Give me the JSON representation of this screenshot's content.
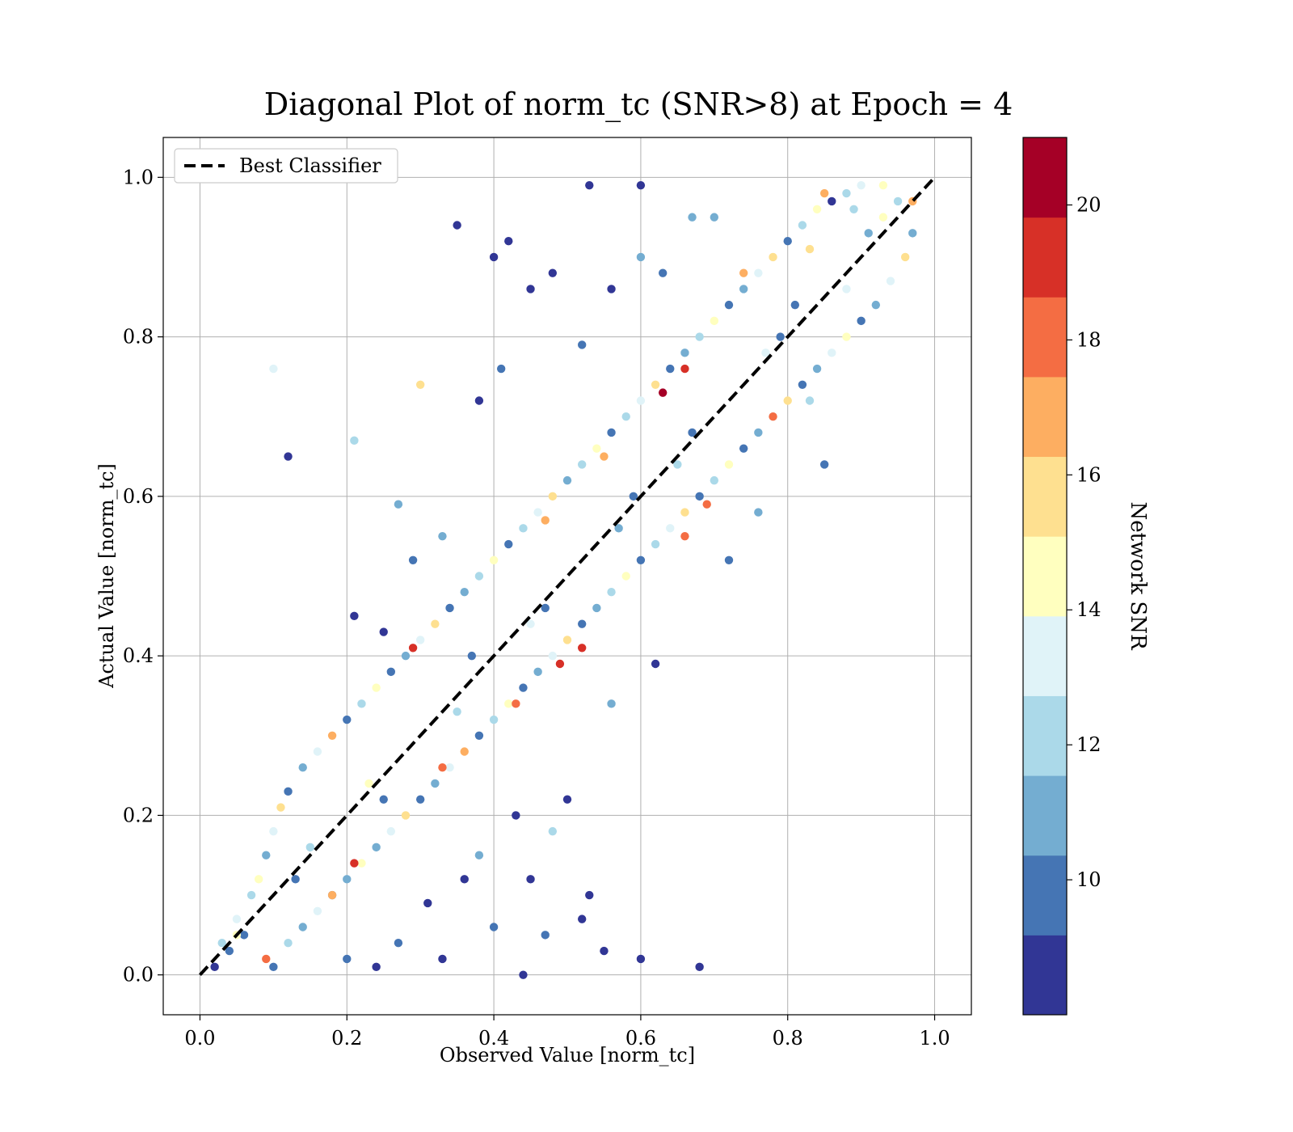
{
  "chart_data": {
    "type": "scatter",
    "title": "Diagonal Plot of norm_tc (SNR>8) at Epoch = 4",
    "xlabel": "Observed Value [norm_tc]",
    "ylabel": "Actual Value [norm_tc]",
    "xlim": [
      -0.05,
      1.05
    ],
    "ylim": [
      -0.05,
      1.05
    ],
    "xticks": [
      0.0,
      0.2,
      0.4,
      0.6,
      0.8,
      1.0
    ],
    "yticks": [
      0.0,
      0.2,
      0.4,
      0.6,
      0.8,
      1.0
    ],
    "xtick_labels": [
      "0.0",
      "0.2",
      "0.4",
      "0.6",
      "0.8",
      "1.0"
    ],
    "ytick_labels": [
      "0.0",
      "0.2",
      "0.4",
      "0.6",
      "0.8",
      "1.0"
    ],
    "grid": true,
    "legend": {
      "position": "top-left",
      "entries": [
        "Best Classifier"
      ]
    },
    "reference_line": {
      "name": "Best Classifier",
      "x": [
        0.0,
        1.0
      ],
      "y": [
        0.0,
        1.0
      ],
      "style": "dashed",
      "color": "#000000"
    },
    "colorbar": {
      "label": "Network SNR",
      "range": [
        8,
        21
      ],
      "ticks": [
        10,
        12,
        14,
        16,
        18,
        20
      ],
      "tick_labels": [
        "10",
        "12",
        "14",
        "16",
        "18",
        "20"
      ],
      "colors": [
        "#313695",
        "#4575b4",
        "#74add1",
        "#abd9e9",
        "#e0f3f8",
        "#ffffbf",
        "#fee090",
        "#fdae61",
        "#f46d43",
        "#d73027",
        "#a50026"
      ]
    },
    "points": [
      {
        "x": 0.02,
        "y": 0.01,
        "snr": 9.1
      },
      {
        "x": 0.03,
        "y": 0.04,
        "snr": 12.4
      },
      {
        "x": 0.04,
        "y": 0.03,
        "snr": 10.2
      },
      {
        "x": 0.05,
        "y": 0.07,
        "snr": 13.1
      },
      {
        "x": 0.06,
        "y": 0.05,
        "snr": 9.6
      },
      {
        "x": 0.07,
        "y": 0.1,
        "snr": 11.8
      },
      {
        "x": 0.08,
        "y": 0.12,
        "snr": 14.6
      },
      {
        "x": 0.09,
        "y": 0.15,
        "snr": 10.7
      },
      {
        "x": 0.1,
        "y": 0.18,
        "snr": 12.9
      },
      {
        "x": 0.11,
        "y": 0.21,
        "snr": 15.2
      },
      {
        "x": 0.12,
        "y": 0.23,
        "snr": 9.3
      },
      {
        "x": 0.14,
        "y": 0.26,
        "snr": 11.4
      },
      {
        "x": 0.16,
        "y": 0.28,
        "snr": 13.7
      },
      {
        "x": 0.18,
        "y": 0.3,
        "snr": 16.4
      },
      {
        "x": 0.2,
        "y": 0.32,
        "snr": 10.1
      },
      {
        "x": 0.22,
        "y": 0.34,
        "snr": 12.2
      },
      {
        "x": 0.24,
        "y": 0.36,
        "snr": 14.1
      },
      {
        "x": 0.26,
        "y": 0.38,
        "snr": 9.8
      },
      {
        "x": 0.28,
        "y": 0.4,
        "snr": 11.1
      },
      {
        "x": 0.3,
        "y": 0.42,
        "snr": 13.3
      },
      {
        "x": 0.32,
        "y": 0.44,
        "snr": 15.6
      },
      {
        "x": 0.34,
        "y": 0.46,
        "snr": 9.2
      },
      {
        "x": 0.36,
        "y": 0.48,
        "snr": 10.9
      },
      {
        "x": 0.38,
        "y": 0.5,
        "snr": 12.7
      },
      {
        "x": 0.4,
        "y": 0.52,
        "snr": 14.9
      },
      {
        "x": 0.42,
        "y": 0.54,
        "snr": 9.4
      },
      {
        "x": 0.44,
        "y": 0.56,
        "snr": 11.6
      },
      {
        "x": 0.46,
        "y": 0.58,
        "snr": 13.5
      },
      {
        "x": 0.48,
        "y": 0.6,
        "snr": 16.1
      },
      {
        "x": 0.5,
        "y": 0.62,
        "snr": 10.4
      },
      {
        "x": 0.52,
        "y": 0.64,
        "snr": 12.1
      },
      {
        "x": 0.54,
        "y": 0.66,
        "snr": 14.4
      },
      {
        "x": 0.56,
        "y": 0.68,
        "snr": 9.7
      },
      {
        "x": 0.58,
        "y": 0.7,
        "snr": 11.9
      },
      {
        "x": 0.6,
        "y": 0.72,
        "snr": 13.8
      },
      {
        "x": 0.62,
        "y": 0.74,
        "snr": 15.4
      },
      {
        "x": 0.64,
        "y": 0.76,
        "snr": 9.5
      },
      {
        "x": 0.66,
        "y": 0.78,
        "snr": 10.8
      },
      {
        "x": 0.68,
        "y": 0.8,
        "snr": 12.6
      },
      {
        "x": 0.7,
        "y": 0.82,
        "snr": 14.7
      },
      {
        "x": 0.72,
        "y": 0.84,
        "snr": 9.9
      },
      {
        "x": 0.74,
        "y": 0.86,
        "snr": 11.3
      },
      {
        "x": 0.76,
        "y": 0.88,
        "snr": 13.2
      },
      {
        "x": 0.78,
        "y": 0.9,
        "snr": 15.8
      },
      {
        "x": 0.8,
        "y": 0.92,
        "snr": 10.3
      },
      {
        "x": 0.82,
        "y": 0.94,
        "snr": 12.5
      },
      {
        "x": 0.84,
        "y": 0.96,
        "snr": 14.2
      },
      {
        "x": 0.86,
        "y": 0.97,
        "snr": 9.1
      },
      {
        "x": 0.88,
        "y": 0.98,
        "snr": 11.7
      },
      {
        "x": 0.9,
        "y": 0.99,
        "snr": 13.6
      },
      {
        "x": 0.1,
        "y": 0.01,
        "snr": 9.6
      },
      {
        "x": 0.12,
        "y": 0.04,
        "snr": 12.3
      },
      {
        "x": 0.14,
        "y": 0.06,
        "snr": 10.5
      },
      {
        "x": 0.16,
        "y": 0.08,
        "snr": 13.4
      },
      {
        "x": 0.18,
        "y": 0.1,
        "snr": 9.2
      },
      {
        "x": 0.2,
        "y": 0.12,
        "snr": 11.2
      },
      {
        "x": 0.22,
        "y": 0.14,
        "snr": 14.3
      },
      {
        "x": 0.24,
        "y": 0.16,
        "snr": 10.6
      },
      {
        "x": 0.26,
        "y": 0.18,
        "snr": 12.8
      },
      {
        "x": 0.28,
        "y": 0.2,
        "snr": 15.1
      },
      {
        "x": 0.3,
        "y": 0.22,
        "snr": 9.4
      },
      {
        "x": 0.32,
        "y": 0.24,
        "snr": 11.5
      },
      {
        "x": 0.34,
        "y": 0.26,
        "snr": 13.9
      },
      {
        "x": 0.36,
        "y": 0.28,
        "snr": 16.6
      },
      {
        "x": 0.38,
        "y": 0.3,
        "snr": 10.2
      },
      {
        "x": 0.4,
        "y": 0.32,
        "snr": 12.4
      },
      {
        "x": 0.42,
        "y": 0.34,
        "snr": 14.5
      },
      {
        "x": 0.44,
        "y": 0.36,
        "snr": 9.7
      },
      {
        "x": 0.46,
        "y": 0.38,
        "snr": 11.0
      },
      {
        "x": 0.48,
        "y": 0.4,
        "snr": 13.1
      },
      {
        "x": 0.5,
        "y": 0.42,
        "snr": 15.3
      },
      {
        "x": 0.52,
        "y": 0.44,
        "snr": 9.3
      },
      {
        "x": 0.54,
        "y": 0.46,
        "snr": 10.9
      },
      {
        "x": 0.56,
        "y": 0.48,
        "snr": 12.7
      },
      {
        "x": 0.58,
        "y": 0.5,
        "snr": 14.8
      },
      {
        "x": 0.6,
        "y": 0.52,
        "snr": 9.5
      },
      {
        "x": 0.62,
        "y": 0.54,
        "snr": 11.8
      },
      {
        "x": 0.64,
        "y": 0.56,
        "snr": 13.3
      },
      {
        "x": 0.66,
        "y": 0.58,
        "snr": 16.2
      },
      {
        "x": 0.68,
        "y": 0.6,
        "snr": 10.1
      },
      {
        "x": 0.7,
        "y": 0.62,
        "snr": 12.2
      },
      {
        "x": 0.72,
        "y": 0.64,
        "snr": 14.0
      },
      {
        "x": 0.74,
        "y": 0.66,
        "snr": 9.8
      },
      {
        "x": 0.76,
        "y": 0.68,
        "snr": 11.4
      },
      {
        "x": 0.78,
        "y": 0.7,
        "snr": 13.6
      },
      {
        "x": 0.8,
        "y": 0.72,
        "snr": 15.5
      },
      {
        "x": 0.82,
        "y": 0.74,
        "snr": 9.2
      },
      {
        "x": 0.84,
        "y": 0.76,
        "snr": 10.7
      },
      {
        "x": 0.86,
        "y": 0.78,
        "snr": 12.9
      },
      {
        "x": 0.88,
        "y": 0.8,
        "snr": 14.6
      },
      {
        "x": 0.9,
        "y": 0.82,
        "snr": 9.6
      },
      {
        "x": 0.92,
        "y": 0.84,
        "snr": 11.3
      },
      {
        "x": 0.94,
        "y": 0.87,
        "snr": 13.2
      },
      {
        "x": 0.96,
        "y": 0.9,
        "snr": 15.9
      },
      {
        "x": 0.97,
        "y": 0.93,
        "snr": 10.4
      },
      {
        "x": 0.95,
        "y": 0.97,
        "snr": 12.6
      },
      {
        "x": 0.93,
        "y": 0.99,
        "snr": 14.1
      },
      {
        "x": 0.97,
        "y": 0.97,
        "snr": 17.4
      },
      {
        "x": 0.85,
        "y": 0.98,
        "snr": 17.1
      },
      {
        "x": 0.74,
        "y": 0.88,
        "snr": 16.8
      },
      {
        "x": 0.29,
        "y": 0.41,
        "snr": 19.3
      },
      {
        "x": 0.49,
        "y": 0.39,
        "snr": 19.1
      },
      {
        "x": 0.52,
        "y": 0.41,
        "snr": 19.4
      },
      {
        "x": 0.63,
        "y": 0.73,
        "snr": 20.6
      },
      {
        "x": 0.66,
        "y": 0.76,
        "snr": 19.2
      },
      {
        "x": 0.21,
        "y": 0.14,
        "snr": 19.0
      },
      {
        "x": 0.78,
        "y": 0.7,
        "snr": 18.2
      },
      {
        "x": 0.69,
        "y": 0.59,
        "snr": 17.9
      },
      {
        "x": 0.66,
        "y": 0.55,
        "snr": 18.1
      },
      {
        "x": 0.09,
        "y": 0.02,
        "snr": 17.6
      },
      {
        "x": 0.33,
        "y": 0.26,
        "snr": 18.0
      },
      {
        "x": 0.43,
        "y": 0.34,
        "snr": 17.7
      },
      {
        "x": 0.47,
        "y": 0.57,
        "snr": 16.9
      },
      {
        "x": 0.55,
        "y": 0.65,
        "snr": 16.3
      },
      {
        "x": 0.18,
        "y": 0.1,
        "snr": 17.2
      },
      {
        "x": 0.12,
        "y": 0.65,
        "snr": 8.6
      },
      {
        "x": 0.1,
        "y": 0.76,
        "snr": 13.9
      },
      {
        "x": 0.3,
        "y": 0.74,
        "snr": 15.1
      },
      {
        "x": 0.27,
        "y": 0.59,
        "snr": 10.6
      },
      {
        "x": 0.21,
        "y": 0.67,
        "snr": 11.6
      },
      {
        "x": 0.35,
        "y": 0.94,
        "snr": 8.7
      },
      {
        "x": 0.4,
        "y": 0.9,
        "snr": 8.9
      },
      {
        "x": 0.42,
        "y": 0.92,
        "snr": 8.5
      },
      {
        "x": 0.48,
        "y": 0.88,
        "snr": 8.8
      },
      {
        "x": 0.53,
        "y": 0.99,
        "snr": 8.4
      },
      {
        "x": 0.6,
        "y": 0.99,
        "snr": 9.0
      },
      {
        "x": 0.67,
        "y": 0.95,
        "snr": 10.5
      },
      {
        "x": 0.7,
        "y": 0.95,
        "snr": 11.2
      },
      {
        "x": 0.56,
        "y": 0.86,
        "snr": 8.6
      },
      {
        "x": 0.38,
        "y": 0.72,
        "snr": 8.9
      },
      {
        "x": 0.63,
        "y": 0.88,
        "snr": 9.4
      },
      {
        "x": 0.45,
        "y": 0.86,
        "snr": 8.7
      },
      {
        "x": 0.52,
        "y": 0.79,
        "snr": 9.2
      },
      {
        "x": 0.41,
        "y": 0.76,
        "snr": 10.3
      },
      {
        "x": 0.6,
        "y": 0.9,
        "snr": 10.9
      },
      {
        "x": 0.68,
        "y": 0.01,
        "snr": 8.5
      },
      {
        "x": 0.6,
        "y": 0.02,
        "snr": 9.1
      },
      {
        "x": 0.53,
        "y": 0.1,
        "snr": 8.7
      },
      {
        "x": 0.52,
        "y": 0.07,
        "snr": 8.9
      },
      {
        "x": 0.48,
        "y": 0.18,
        "snr": 12.2
      },
      {
        "x": 0.44,
        "y": 0.0,
        "snr": 8.6
      },
      {
        "x": 0.4,
        "y": 0.06,
        "snr": 9.3
      },
      {
        "x": 0.38,
        "y": 0.15,
        "snr": 11.4
      },
      {
        "x": 0.45,
        "y": 0.12,
        "snr": 8.8
      },
      {
        "x": 0.5,
        "y": 0.22,
        "snr": 9.0
      },
      {
        "x": 0.55,
        "y": 0.03,
        "snr": 8.4
      },
      {
        "x": 0.43,
        "y": 0.2,
        "snr": 8.7
      },
      {
        "x": 0.47,
        "y": 0.05,
        "snr": 10.1
      },
      {
        "x": 0.36,
        "y": 0.12,
        "snr": 8.9
      },
      {
        "x": 0.62,
        "y": 0.39,
        "snr": 8.6
      },
      {
        "x": 0.56,
        "y": 0.34,
        "snr": 10.8
      },
      {
        "x": 0.21,
        "y": 0.45,
        "snr": 8.5
      },
      {
        "x": 0.25,
        "y": 0.43,
        "snr": 8.9
      },
      {
        "x": 0.29,
        "y": 0.52,
        "snr": 9.2
      },
      {
        "x": 0.33,
        "y": 0.55,
        "snr": 10.4
      },
      {
        "x": 0.76,
        "y": 0.58,
        "snr": 11.5
      },
      {
        "x": 0.72,
        "y": 0.52,
        "snr": 10.2
      },
      {
        "x": 0.83,
        "y": 0.72,
        "snr": 12.3
      },
      {
        "x": 0.85,
        "y": 0.64,
        "snr": 9.6
      },
      {
        "x": 0.88,
        "y": 0.86,
        "snr": 13.5
      },
      {
        "x": 0.91,
        "y": 0.93,
        "snr": 11.1
      },
      {
        "x": 0.93,
        "y": 0.95,
        "snr": 14.4
      },
      {
        "x": 0.89,
        "y": 0.96,
        "snr": 12.7
      },
      {
        "x": 0.83,
        "y": 0.91,
        "snr": 15.3
      },
      {
        "x": 0.81,
        "y": 0.84,
        "snr": 9.9
      },
      {
        "x": 0.59,
        "y": 0.6,
        "snr": 9.2
      },
      {
        "x": 0.57,
        "y": 0.56,
        "snr": 10.6
      },
      {
        "x": 0.37,
        "y": 0.4,
        "snr": 9.5
      },
      {
        "x": 0.35,
        "y": 0.33,
        "snr": 11.9
      },
      {
        "x": 0.15,
        "y": 0.16,
        "snr": 12.4
      },
      {
        "x": 0.13,
        "y": 0.12,
        "snr": 9.8
      },
      {
        "x": 0.23,
        "y": 0.24,
        "snr": 14.2
      },
      {
        "x": 0.25,
        "y": 0.22,
        "snr": 10.3
      },
      {
        "x": 0.45,
        "y": 0.44,
        "snr": 13.1
      },
      {
        "x": 0.47,
        "y": 0.46,
        "snr": 9.4
      },
      {
        "x": 0.65,
        "y": 0.64,
        "snr": 12.0
      },
      {
        "x": 0.67,
        "y": 0.68,
        "snr": 10.0
      },
      {
        "x": 0.77,
        "y": 0.78,
        "snr": 13.8
      },
      {
        "x": 0.79,
        "y": 0.8,
        "snr": 9.7
      },
      {
        "x": 0.05,
        "y": 0.05,
        "snr": 15.0
      },
      {
        "x": 0.31,
        "y": 0.09,
        "snr": 8.8
      },
      {
        "x": 0.27,
        "y": 0.04,
        "snr": 9.2
      },
      {
        "x": 0.33,
        "y": 0.02,
        "snr": 8.7
      },
      {
        "x": 0.2,
        "y": 0.02,
        "snr": 9.5
      },
      {
        "x": 0.24,
        "y": 0.01,
        "snr": 8.9
      }
    ]
  }
}
